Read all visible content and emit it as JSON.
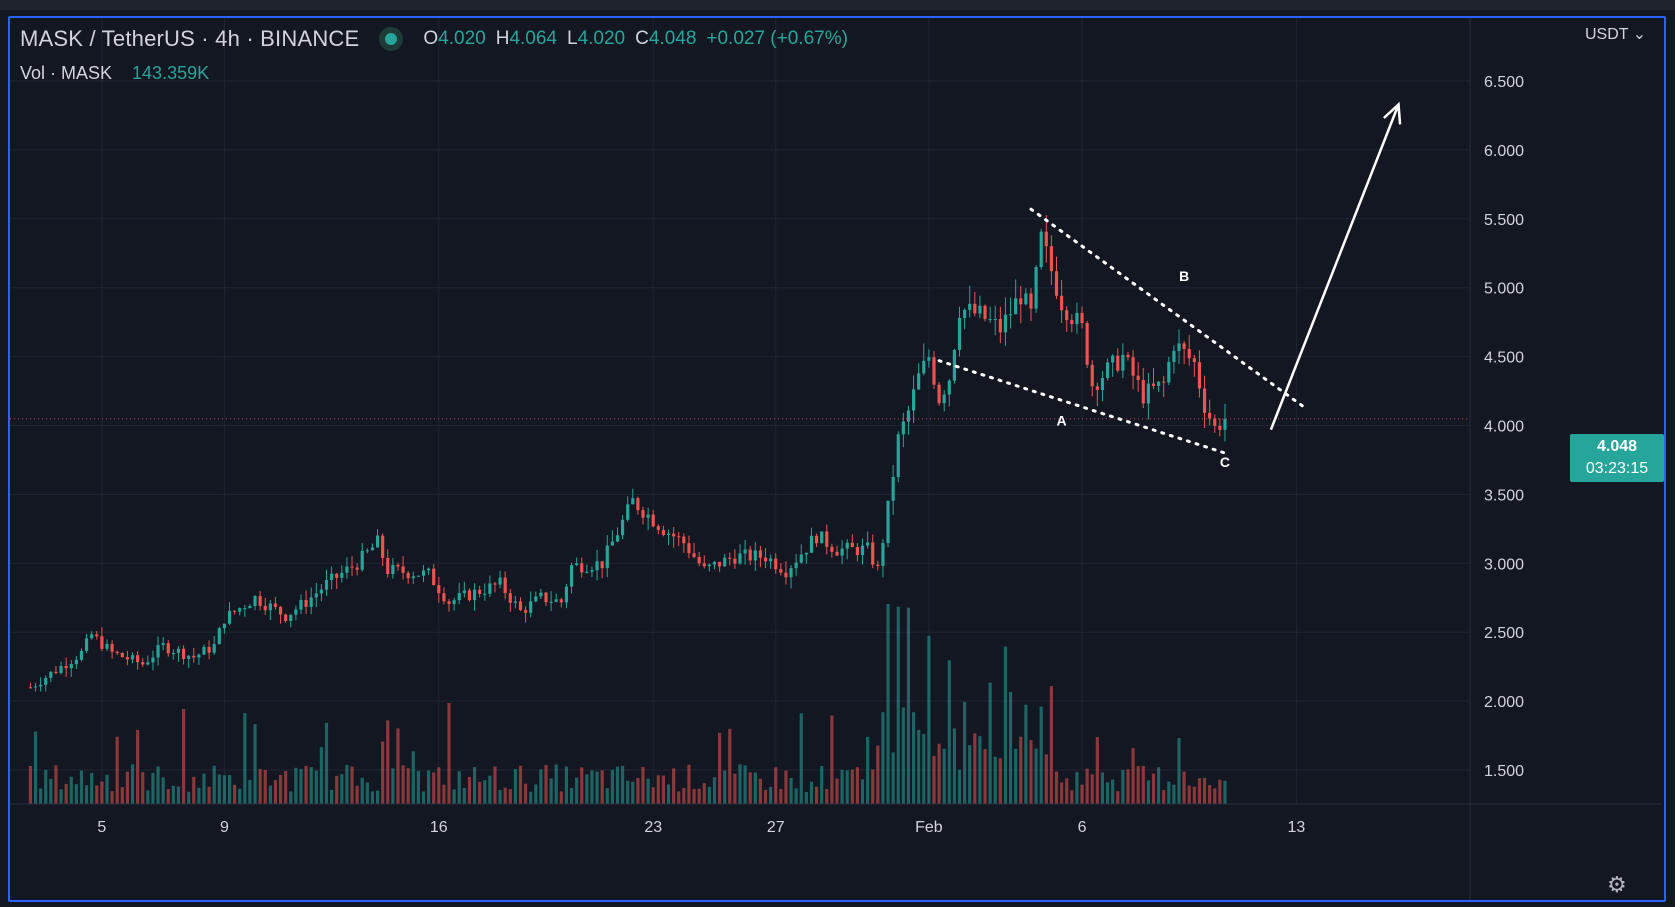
{
  "header": {
    "symbol": "MASK / TetherUS · 4h · BINANCE",
    "open_label": "O",
    "open": "4.020",
    "high_label": "H",
    "high": "4.064",
    "low_label": "L",
    "low": "4.020",
    "close_label": "C",
    "close": "4.048",
    "change": "+0.027 (+0.67%)"
  },
  "volume_legend": {
    "label": "Vol · MASK",
    "value": "143.359K"
  },
  "currency": "USDT ⌄",
  "last_price": {
    "price": "4.048",
    "countdown": "03:23:15"
  },
  "colors": {
    "up": "#26a69a",
    "down": "#ef5350",
    "background": "#131722",
    "grid": "#1f2433",
    "frame": "#2962ff",
    "annotation": "#ffffff"
  },
  "icons": {
    "settings": "gear-icon"
  },
  "chart_data": {
    "type": "candlestick",
    "timeframe": "4h",
    "y_axis": {
      "ticks": [
        "1.500",
        "2.000",
        "2.500",
        "3.000",
        "3.500",
        "4.000",
        "4.500",
        "5.000",
        "5.500",
        "6.000",
        "6.500"
      ],
      "range": [
        1.25,
        6.75
      ]
    },
    "x_axis": {
      "ticks": [
        {
          "label": "5",
          "bar": 14
        },
        {
          "label": "9",
          "bar": 38
        },
        {
          "label": "16",
          "bar": 80
        },
        {
          "label": "23",
          "bar": 122
        },
        {
          "label": "27",
          "bar": 146
        },
        {
          "label": "Feb",
          "bar": 176
        },
        {
          "label": "6",
          "bar": 206
        },
        {
          "label": "13",
          "bar": 248
        }
      ],
      "range_bars": [
        -4,
        282
      ]
    },
    "last_price_line": 4.048,
    "price_waypoints": [
      [
        0,
        2.1
      ],
      [
        6,
        2.25
      ],
      [
        10,
        2.35
      ],
      [
        12,
        2.48
      ],
      [
        16,
        2.35
      ],
      [
        22,
        2.27
      ],
      [
        26,
        2.4
      ],
      [
        32,
        2.32
      ],
      [
        36,
        2.4
      ],
      [
        38,
        2.6
      ],
      [
        44,
        2.75
      ],
      [
        50,
        2.62
      ],
      [
        54,
        2.72
      ],
      [
        58,
        2.85
      ],
      [
        64,
        3.0
      ],
      [
        68,
        3.15
      ],
      [
        70,
        2.95
      ],
      [
        78,
        2.92
      ],
      [
        82,
        2.72
      ],
      [
        88,
        2.8
      ],
      [
        92,
        2.85
      ],
      [
        96,
        2.65
      ],
      [
        100,
        2.75
      ],
      [
        104,
        2.72
      ],
      [
        106,
        2.98
      ],
      [
        112,
        3.0
      ],
      [
        118,
        3.45
      ],
      [
        124,
        3.25
      ],
      [
        128,
        3.15
      ],
      [
        132,
        2.95
      ],
      [
        138,
        3.05
      ],
      [
        144,
        3.05
      ],
      [
        148,
        2.95
      ],
      [
        154,
        3.2
      ],
      [
        158,
        3.1
      ],
      [
        164,
        3.1
      ],
      [
        166,
        2.95
      ],
      [
        168,
        3.4
      ],
      [
        170,
        3.9
      ],
      [
        172,
        4.1
      ],
      [
        174,
        4.35
      ],
      [
        176,
        4.5
      ],
      [
        178,
        4.2
      ],
      [
        180,
        4.35
      ],
      [
        182,
        4.85
      ],
      [
        186,
        4.8
      ],
      [
        190,
        4.7
      ],
      [
        194,
        4.95
      ],
      [
        196,
        4.8
      ],
      [
        198,
        5.35
      ],
      [
        202,
        4.9
      ],
      [
        206,
        4.7
      ],
      [
        208,
        4.3
      ],
      [
        214,
        4.5
      ],
      [
        218,
        4.22
      ],
      [
        222,
        4.3
      ],
      [
        224,
        4.6
      ],
      [
        228,
        4.45
      ],
      [
        230,
        4.15
      ],
      [
        232,
        3.98
      ],
      [
        234,
        4.05
      ]
    ],
    "volume_series": {
      "name": "Vol · MASK",
      "unit": "price-scale-agnostic",
      "spike_bars": [
        168,
        170,
        172,
        176,
        180
      ]
    },
    "annotations": {
      "wave_labels": [
        {
          "text": "A",
          "bar": 202,
          "price": 4.0
        },
        {
          "text": "B",
          "bar": 226,
          "price": 5.05
        },
        {
          "text": "C",
          "bar": 234,
          "price": 3.7
        }
      ],
      "upper_trendline": [
        [
          196,
          5.57
        ],
        [
          250,
          4.12
        ]
      ],
      "lower_trendline": [
        [
          178,
          4.47
        ],
        [
          234,
          3.8
        ]
      ],
      "arrow": [
        [
          243,
          3.97
        ],
        [
          268,
          6.33
        ]
      ]
    }
  }
}
